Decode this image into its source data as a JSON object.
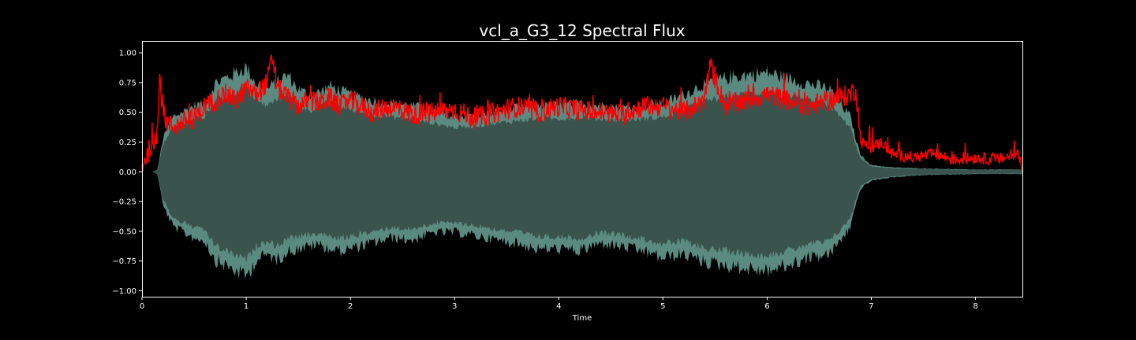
{
  "chart_data": {
    "type": "line",
    "title": "vcl_a_G3_12 Spectral Flux",
    "xlabel": "Time",
    "ylabel": "",
    "xlim": [
      0,
      8.45
    ],
    "ylim": [
      -1.05,
      1.1
    ],
    "x_ticks": [
      "0",
      "1",
      "2",
      "3",
      "4",
      "5",
      "6",
      "7",
      "8"
    ],
    "x_tick_values": [
      0,
      1,
      2,
      3,
      4,
      5,
      6,
      7,
      8
    ],
    "y_ticks": [
      "1.00",
      "0.75",
      "0.50",
      "0.25",
      "0.00",
      "−0.25",
      "−0.50",
      "−0.75",
      "−1.00"
    ],
    "y_tick_values": [
      1.0,
      0.75,
      0.5,
      0.25,
      0.0,
      -0.25,
      -0.5,
      -0.75,
      -1.0
    ],
    "grid": false,
    "series": [
      {
        "kind": "waveform-envelope",
        "color": "#5a8a80",
        "fill_color": "#3b534d",
        "x": [
          0,
          0.1,
          0.15,
          0.2,
          0.3,
          0.4,
          0.5,
          0.6,
          0.7,
          0.8,
          0.9,
          1.0,
          1.1,
          1.2,
          1.3,
          1.4,
          1.5,
          1.6,
          1.7,
          1.8,
          1.9,
          2.0,
          2.2,
          2.4,
          2.6,
          2.8,
          3.0,
          3.2,
          3.4,
          3.6,
          3.8,
          4.0,
          4.2,
          4.4,
          4.6,
          4.8,
          5.0,
          5.2,
          5.4,
          5.6,
          5.8,
          6.0,
          6.2,
          6.4,
          6.6,
          6.8,
          6.85,
          6.9,
          7.0,
          7.2,
          7.5,
          8.0,
          8.45
        ],
        "upper": [
          0.0,
          0.0,
          0.02,
          0.3,
          0.5,
          0.55,
          0.6,
          0.62,
          0.8,
          0.85,
          0.9,
          0.95,
          0.8,
          0.75,
          0.82,
          0.88,
          0.75,
          0.7,
          0.72,
          0.78,
          0.74,
          0.7,
          0.65,
          0.62,
          0.6,
          0.55,
          0.5,
          0.52,
          0.55,
          0.58,
          0.6,
          0.6,
          0.62,
          0.6,
          0.58,
          0.6,
          0.62,
          0.7,
          0.8,
          0.85,
          0.88,
          0.9,
          0.85,
          0.8,
          0.75,
          0.5,
          0.3,
          0.15,
          0.06,
          0.04,
          0.03,
          0.02,
          0.02
        ],
        "lower": [
          0.0,
          0.0,
          -0.02,
          -0.3,
          -0.5,
          -0.55,
          -0.6,
          -0.62,
          -0.8,
          -0.85,
          -0.9,
          -0.95,
          -0.8,
          -0.75,
          -0.8,
          -0.72,
          -0.7,
          -0.68,
          -0.66,
          -0.7,
          -0.72,
          -0.7,
          -0.65,
          -0.6,
          -0.62,
          -0.55,
          -0.55,
          -0.58,
          -0.62,
          -0.65,
          -0.7,
          -0.7,
          -0.72,
          -0.65,
          -0.68,
          -0.72,
          -0.78,
          -0.75,
          -0.82,
          -0.85,
          -0.88,
          -0.9,
          -0.85,
          -0.78,
          -0.75,
          -0.5,
          -0.3,
          -0.15,
          -0.08,
          -0.05,
          -0.03,
          -0.02,
          -0.02
        ]
      },
      {
        "kind": "line",
        "color": "#ff0000",
        "x": [
          0,
          0.05,
          0.1,
          0.15,
          0.17,
          0.2,
          0.25,
          0.3,
          0.4,
          0.5,
          0.6,
          0.7,
          0.8,
          0.9,
          1.0,
          1.1,
          1.2,
          1.25,
          1.3,
          1.4,
          1.5,
          1.6,
          1.7,
          1.8,
          1.9,
          2.0,
          2.2,
          2.4,
          2.6,
          2.8,
          3.0,
          3.2,
          3.4,
          3.6,
          3.8,
          4.0,
          4.2,
          4.4,
          4.6,
          4.8,
          5.0,
          5.2,
          5.4,
          5.45,
          5.6,
          5.8,
          6.0,
          6.2,
          6.4,
          6.6,
          6.8,
          6.85,
          6.9,
          7.0,
          7.1,
          7.2,
          7.4,
          7.6,
          7.8,
          8.0,
          8.2,
          8.4,
          8.45
        ],
        "y": [
          0.05,
          0.15,
          0.25,
          0.35,
          0.8,
          0.5,
          0.4,
          0.38,
          0.42,
          0.45,
          0.55,
          0.6,
          0.65,
          0.6,
          0.7,
          0.65,
          0.75,
          0.95,
          0.7,
          0.62,
          0.55,
          0.6,
          0.58,
          0.62,
          0.55,
          0.6,
          0.5,
          0.55,
          0.48,
          0.5,
          0.52,
          0.45,
          0.5,
          0.55,
          0.5,
          0.55,
          0.52,
          0.5,
          0.48,
          0.55,
          0.55,
          0.5,
          0.6,
          0.9,
          0.55,
          0.6,
          0.65,
          0.6,
          0.55,
          0.6,
          0.65,
          0.7,
          0.25,
          0.2,
          0.25,
          0.15,
          0.12,
          0.15,
          0.1,
          0.12,
          0.1,
          0.15,
          0.05
        ]
      }
    ]
  }
}
